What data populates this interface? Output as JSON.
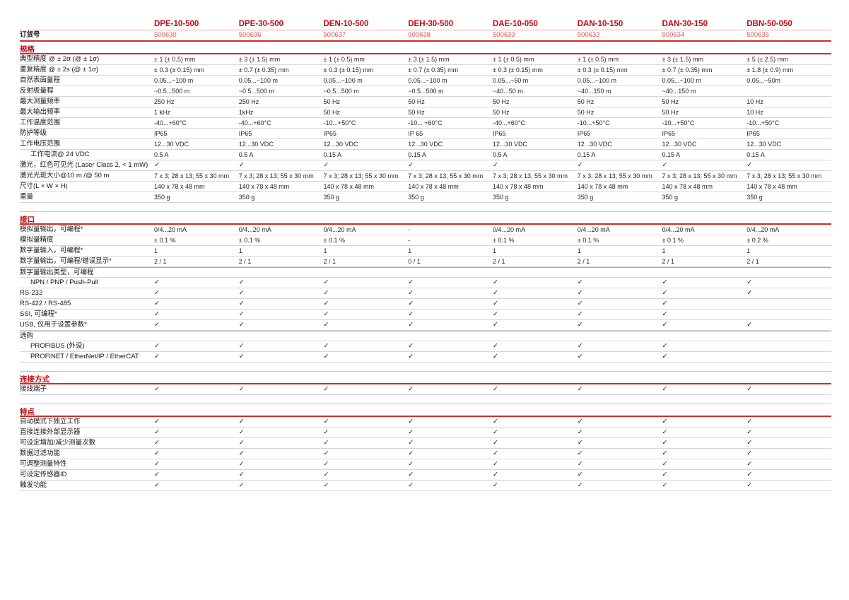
{
  "page": {
    "background": "#ffffff"
  },
  "colors": {
    "brand_red": "#c00712",
    "order_number_red": "#cf5a55",
    "rule_red": "#c9302e",
    "rule_salmon": "#efb3ae",
    "row_line_gray": "#d6d6d6",
    "subheader_line_gray": "#a8a8a8",
    "text": "#1c1c1c"
  },
  "glyphs": {
    "check": "✓"
  },
  "table": {
    "order_label": "订货号",
    "models": [
      {
        "name": "DPE-10-500",
        "order_no": "500630"
      },
      {
        "name": "DPE-30-500",
        "order_no": "500636"
      },
      {
        "name": "DEN-10-500",
        "order_no": "500637"
      },
      {
        "name": "DEH-30-500",
        "order_no": "500638"
      },
      {
        "name": "DAE-10-050",
        "order_no": "500633"
      },
      {
        "name": "DAN-10-150",
        "order_no": "500632"
      },
      {
        "name": "DAN-30-150",
        "order_no": "500634"
      },
      {
        "name": "DBN-50-050",
        "order_no": "500635"
      }
    ],
    "sections": [
      {
        "title": "规格",
        "rows": [
          {
            "label": "典型精度 @ ± 2σ (@ ± 1σ)",
            "values": [
              "± 1 (± 0.5) mm",
              "± 3 (± 1.5) mm",
              "± 1 (± 0.5) mm",
              "± 3 (± 1.5) mm",
              "± 1 (± 0.5) mm",
              "± 1 (± 0.5) mm",
              "± 3 (± 1.5) mm",
              "± 5 (± 2.5) mm"
            ]
          },
          {
            "label": "重复精度 @ ± 2s (@ ± 1σ)",
            "values": [
              "± 0.3 (± 0.15) mm",
              "± 0.7 (± 0.35) mm",
              "± 0.3 (± 0.15) mm",
              "± 0.7 (± 0.35) mm",
              "± 0.3 (± 0.15) mm",
              "± 0.3 (± 0.15) mm",
              "± 0.7 (± 0.35) mm",
              "± 1.8 (± 0.9) mm"
            ]
          },
          {
            "label": "自然表面量程",
            "values": [
              "0.05...~100 m",
              "0.05...~100 m",
              "0.05...~100 m",
              "0.05...~100 m",
              "0.05...~50 m",
              "0.05...~100 m",
              "0.05...~100 m",
              "0.05...~50m"
            ]
          },
          {
            "label": "反射板量程",
            "values": [
              "~0.5...500 m",
              "~0.5...500 m",
              "~0.5...500 m",
              "~0.5...500 m",
              "~40...50 m",
              "~40...150 m",
              "~40...150 m",
              ""
            ]
          },
          {
            "label": "最大测量频率",
            "values": [
              "250 Hz",
              "250 Hz",
              "50 Hz",
              "50 Hz",
              "50 Hz",
              "50 Hz",
              "50 Hz",
              "10 Hz"
            ]
          },
          {
            "label": "最大输出频率",
            "values": [
              "1 kHz",
              "1kHz",
              "50 Hz",
              "50 Hz",
              "50 Hz",
              "50 Hz",
              "50 Hz",
              "10 Hz"
            ]
          },
          {
            "label": "工作温度范围",
            "values": [
              "-40...+60°C",
              "-40...+60°C",
              "-10...+50°C",
              "-10... +60°C",
              "-40...+60°C",
              "-10...+50°C",
              "-10...+50°C",
              "-10...+50°C"
            ]
          },
          {
            "label": "防护等级",
            "values": [
              "IP65",
              "IP65",
              "IP65",
              "IP 65",
              "IP65",
              "IP65",
              "IP65",
              "IP65"
            ]
          },
          {
            "label": "工作电压范围",
            "values": [
              "12...30 VDC",
              "12...30 VDC",
              "12...30 VDC",
              "12...30 VDC",
              "12...30 VDC",
              "12...30 VDC",
              "12...30 VDC",
              "12...30 VDC"
            ]
          },
          {
            "label": "工作电流@ 24 VDC",
            "indent": true,
            "values": [
              "0.5 A",
              "0.5 A",
              "0.15 A",
              "0.15 A",
              "0.5 A",
              "0.15 A",
              "0.15 A",
              "0.15 A"
            ]
          },
          {
            "label": "激光，红色可见光 (Laser Class 2, < 1 mW)",
            "values": [
              "✓",
              "✓",
              "✓",
              "✓",
              "✓",
              "✓",
              "✓",
              "✓"
            ]
          },
          {
            "label": "激光光斑大小@10 m /@ 50 m",
            "values": [
              "7 x 3; 28 x 13; 55 x 30 mm",
              "7 x 3; 28 x 13; 55 x 30 mm",
              "7 x 3; 28 x 13; 55 x 30 mm",
              "7 x 3; 28 x 13; 55 x 30 mm",
              "7 x 3; 28 x 13; 55 x 30 mm",
              "7 x 3; 28 x 13; 55 x 30 mm",
              "7 x 3; 28 x 13; 55 x 30 mm",
              "7 x 3; 28 x 13; 55 x 30 mm"
            ]
          },
          {
            "label": "尺寸(L × W × H)",
            "values": [
              "140 x 78 x 48 mm",
              "140 x 78 x 48 mm",
              "140 x 78 x 48 mm",
              "140 x 78 x 48 mm",
              "140 x 78 x 48 mm",
              "140 x 78 x 48 mm",
              "140 x 78 x 48 mm",
              "140 x 78 x 48 mm"
            ]
          },
          {
            "label": "重量",
            "values": [
              "350 g",
              "350 g",
              "350 g",
              "350 g",
              "350 g",
              "350 g",
              "350 g",
              "350 g"
            ]
          }
        ]
      },
      {
        "title": "接口",
        "rows": [
          {
            "label": "模拟量输出，可编程*",
            "values": [
              "0/4...20 mA",
              "0/4...20 mA",
              "0/4...20 mA",
              "-",
              "0/4...20 mA",
              "0/4...20 mA",
              "0/4...20 mA",
              "0/4...20 mA"
            ]
          },
          {
            "label": "模拟量精度",
            "values": [
              "± 0.1 %",
              "± 0.1 %",
              "± 0.1 %",
              "-",
              "± 0.1 %",
              "± 0.1 %",
              "± 0.1 %",
              "± 0.2 %"
            ]
          },
          {
            "label": "数字量输入，可编程*",
            "values": [
              "1",
              "1",
              "1",
              "1",
              "1",
              "1",
              "1",
              "1"
            ]
          },
          {
            "label": "数字量输出，可编程/错误显示*",
            "values": [
              "2 / 1",
              "2 / 1",
              "2 / 1",
              "0 / 1",
              "2 / 1",
              "2 / 1",
              "2 / 1",
              "2 / 1"
            ]
          },
          {
            "label": "数字量输出类型，可编程",
            "subheader": true,
            "values": [
              "",
              "",
              "",
              "",
              "",
              "",
              "",
              ""
            ]
          },
          {
            "label": "NPN / PNP / Push-Pull",
            "indent": true,
            "values": [
              "✓",
              "✓",
              "✓",
              "✓",
              "✓",
              "✓",
              "✓",
              "✓"
            ]
          },
          {
            "label": "RS-232",
            "values": [
              "✓",
              "✓",
              "✓",
              "✓",
              "✓",
              "✓",
              "✓",
              "✓"
            ]
          },
          {
            "label": "RS-422 / RS-485",
            "values": [
              "✓",
              "✓",
              "✓",
              "✓",
              "✓",
              "✓",
              "✓",
              ""
            ]
          },
          {
            "label": "SSI, 可编程*",
            "values": [
              "✓",
              "✓",
              "✓",
              "✓",
              "✓",
              "✓",
              "✓",
              ""
            ]
          },
          {
            "label": "USB, 仅用于设置参数*",
            "values": [
              "✓",
              "✓",
              "✓",
              "✓",
              "✓",
              "✓",
              "✓",
              "✓"
            ]
          },
          {
            "label": "选购",
            "subheader": true,
            "values": [
              "",
              "",
              "",
              "",
              "",
              "",
              "",
              ""
            ]
          },
          {
            "label": "PROFIBUS (外设)",
            "indent": true,
            "values": [
              "✓",
              "✓",
              "✓",
              "✓",
              "✓",
              "✓",
              "✓",
              ""
            ]
          },
          {
            "label": "PROFINET / EtherNet/IP / EtherCAT",
            "indent": true,
            "values": [
              "✓",
              "✓",
              "✓",
              "✓",
              "✓",
              "✓",
              "✓",
              ""
            ]
          }
        ]
      },
      {
        "title": "连接方式",
        "rows": [
          {
            "label": "接线端子",
            "values": [
              "✓",
              "✓",
              "✓",
              "✓",
              "✓",
              "✓",
              "✓",
              "✓"
            ]
          }
        ]
      },
      {
        "title": "特点",
        "rows": [
          {
            "label": "自动模式下独立工作",
            "values": [
              "✓",
              "✓",
              "✓",
              "✓",
              "✓",
              "✓",
              "✓",
              "✓"
            ]
          },
          {
            "label": "直接连接外部显示器",
            "values": [
              "✓",
              "✓",
              "✓",
              "✓",
              "✓",
              "✓",
              "✓",
              "✓"
            ]
          },
          {
            "label": "可设定增加/减少测量次数",
            "values": [
              "✓",
              "✓",
              "✓",
              "✓",
              "✓",
              "✓",
              "✓",
              "✓"
            ]
          },
          {
            "label": "数据过滤功能",
            "values": [
              "✓",
              "✓",
              "✓",
              "✓",
              "✓",
              "✓",
              "✓",
              "✓"
            ]
          },
          {
            "label": "可调整测量特性",
            "values": [
              "✓",
              "✓",
              "✓",
              "✓",
              "✓",
              "✓",
              "✓",
              "✓"
            ]
          },
          {
            "label": "可设定传感器ID",
            "values": [
              "✓",
              "✓",
              "✓",
              "✓",
              "✓",
              "✓",
              "✓",
              "✓"
            ]
          },
          {
            "label": "触发功能",
            "values": [
              "✓",
              "✓",
              "✓",
              "✓",
              "✓",
              "✓",
              "✓",
              "✓"
            ]
          }
        ]
      }
    ]
  }
}
